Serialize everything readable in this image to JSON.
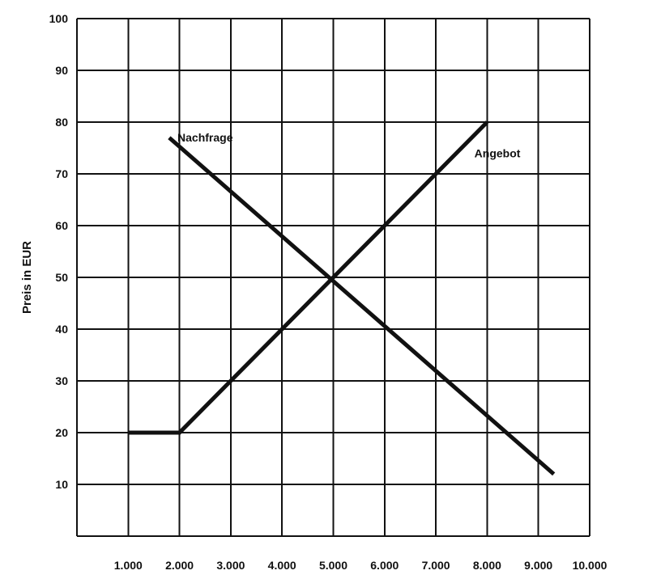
{
  "chart_data": {
    "type": "line",
    "title": "",
    "xlabel": "",
    "ylabel": "Preis in EUR",
    "x_ticks": [
      "1.000",
      "2.000",
      "3.000",
      "4.000",
      "5.000",
      "6.000",
      "7.000",
      "8.000",
      "9.000",
      "10.000"
    ],
    "x_tick_values": [
      1000,
      2000,
      3000,
      4000,
      5000,
      6000,
      7000,
      8000,
      9000,
      10000
    ],
    "y_ticks": [
      "10",
      "20",
      "30",
      "40",
      "50",
      "60",
      "70",
      "80",
      "90",
      "100"
    ],
    "y_tick_values": [
      10,
      20,
      30,
      40,
      50,
      60,
      70,
      80,
      90,
      100
    ],
    "xlim": [
      0,
      10000
    ],
    "ylim": [
      0,
      100
    ],
    "grid": true,
    "legend": "none",
    "series": [
      {
        "name": "Nachfrage",
        "points": [
          [
            1800,
            77
          ],
          [
            9300,
            12
          ]
        ]
      },
      {
        "name": "Angebot",
        "points": [
          [
            1000,
            20
          ],
          [
            2000,
            20
          ],
          [
            8000,
            80
          ]
        ]
      }
    ],
    "annotations": [
      {
        "text": "Nachfrage",
        "x": 2500,
        "y": 77
      },
      {
        "text": "Angebot",
        "x": 8200,
        "y": 74
      }
    ],
    "line_color": "#111111"
  }
}
